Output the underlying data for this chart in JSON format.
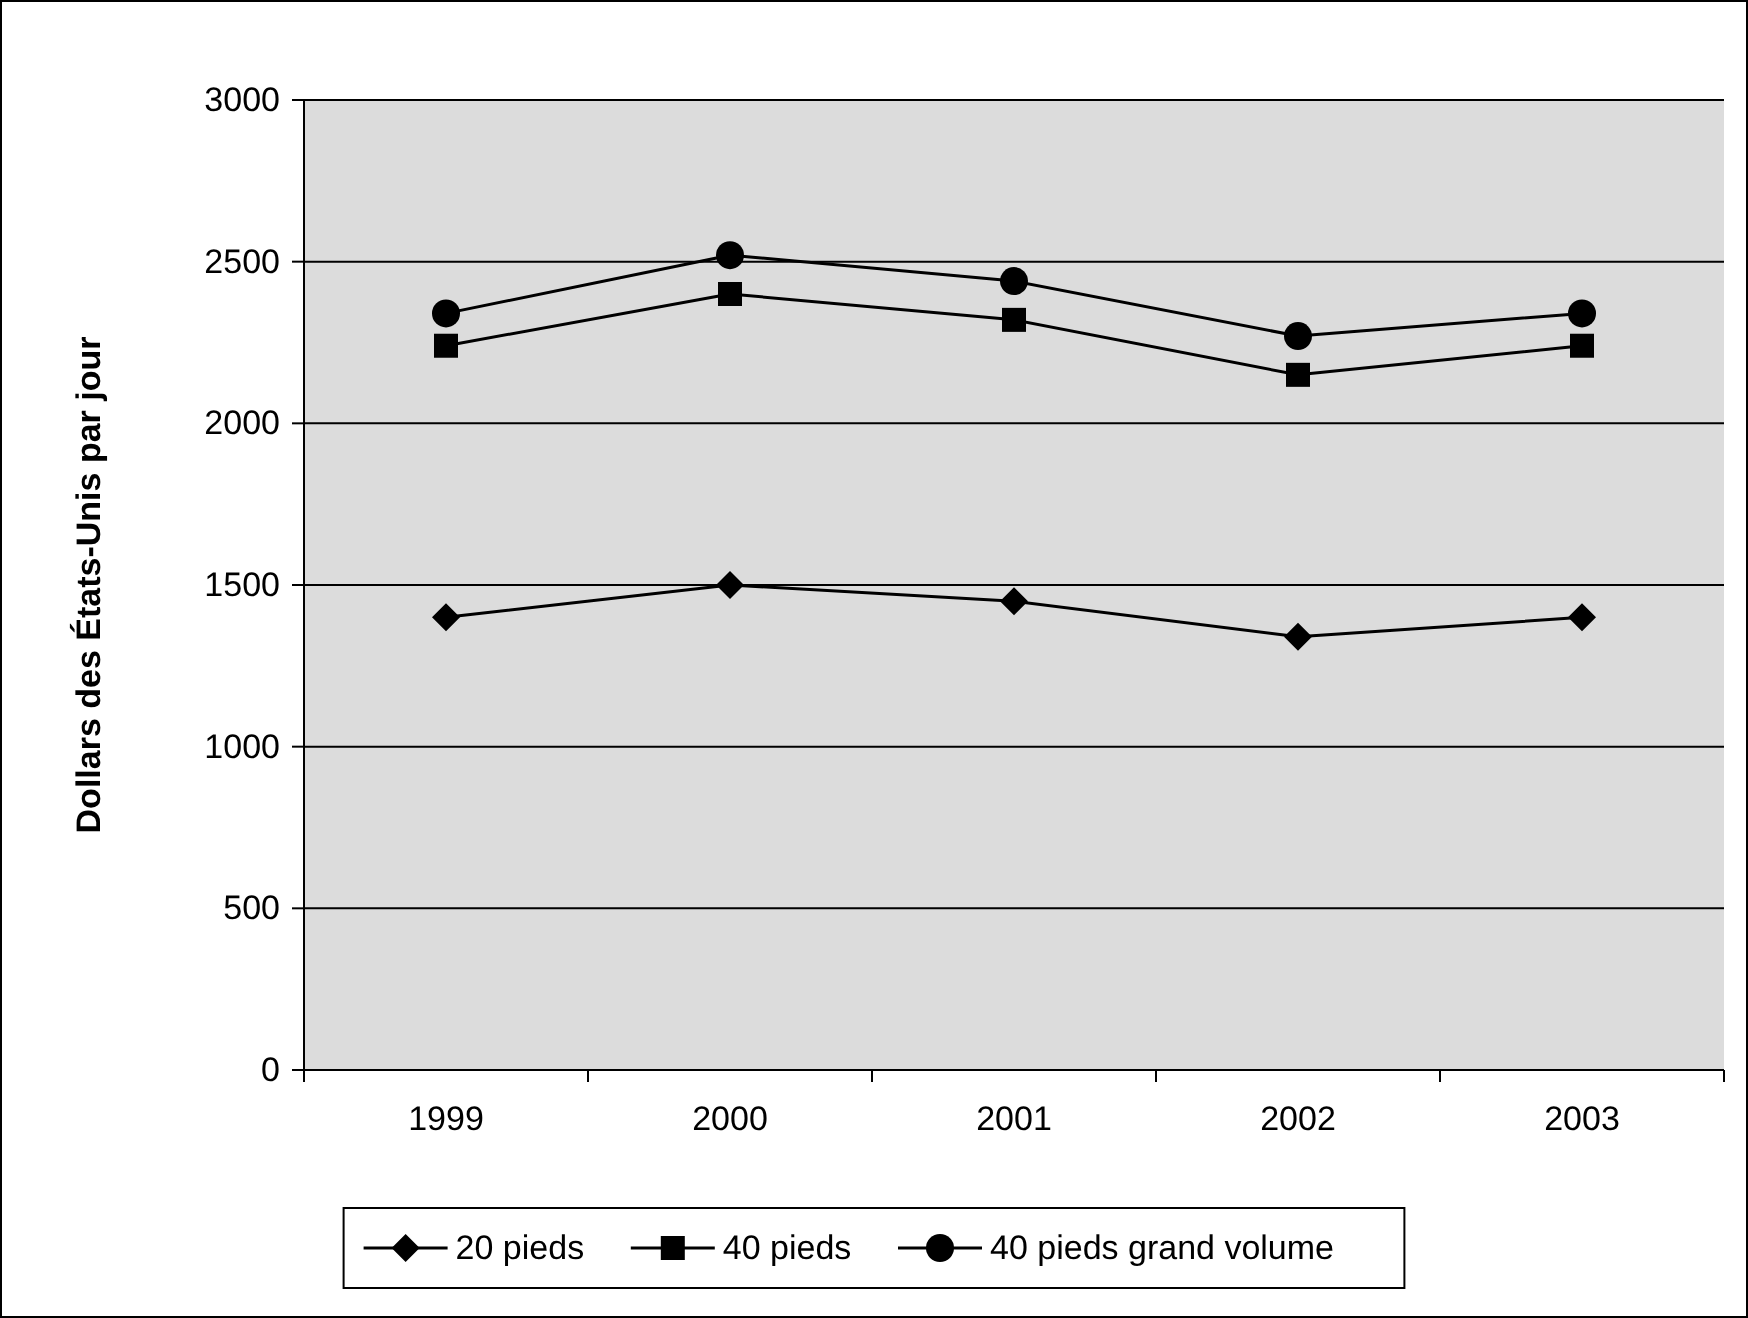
{
  "chart_data": {
    "type": "line",
    "ylabel": "Dollars des États-Unis par jour",
    "categories": [
      "1999",
      "2000",
      "2001",
      "2002",
      "2003"
    ],
    "series": [
      {
        "name": "20 pieds",
        "color": "#000000",
        "marker": "diamond",
        "values": [
          1400,
          1500,
          1450,
          1340,
          1400
        ]
      },
      {
        "name": "40 pieds",
        "color": "#000000",
        "marker": "square",
        "values": [
          2240,
          2400,
          2320,
          2150,
          2240
        ]
      },
      {
        "name": "40 pieds grand volume",
        "color": "#000000",
        "marker": "circle",
        "values": [
          2340,
          2520,
          2440,
          2270,
          2340
        ]
      }
    ],
    "ylim": [
      0,
      3000
    ],
    "yticks": [
      0,
      500,
      1000,
      1500,
      2000,
      2500,
      3000
    ],
    "grid": "y",
    "legend": "bottom",
    "line_style": "solid"
  }
}
